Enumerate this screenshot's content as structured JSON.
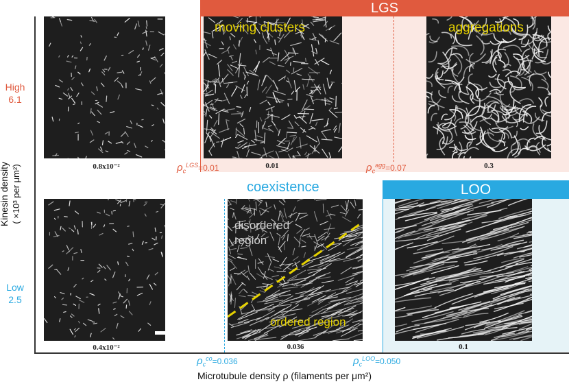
{
  "colors": {
    "lgs": "#e05a3e",
    "lgs_bg": "#fbe8e3",
    "loo": "#29a9e1",
    "loo_bg": "#e6f3f7",
    "high": "#e05a3e",
    "low": "#29a9e1",
    "yellow": "#e6d200",
    "panel": "#1e1e1e"
  },
  "banners": {
    "lgs": "LGS",
    "loo": "LOO",
    "coexistence": "coexistence"
  },
  "axes": {
    "ylabel": "Kinesin density",
    "yunit": "( ×10³ per μm²)",
    "xlabel": "Microtubule density ρ (filaments per μm²)"
  },
  "levels": {
    "high_label": "High",
    "high_value": "6.1",
    "low_label": "Low",
    "low_value": "2.5"
  },
  "panels": {
    "high_1": "0.8x10⁻²",
    "high_2": "0.01",
    "high_3": "0.3",
    "low_1": "0.4x10⁻²",
    "low_2": "0.036",
    "low_3": "0.1"
  },
  "annotations": {
    "moving_clusters": "moving clusters",
    "aggregations": "aggregations",
    "disordered_line1": "disordered",
    "disordered_line2": "region",
    "ordered_region": "ordered region"
  },
  "thresholds": {
    "lgs_symbol": "ρ",
    "lgs_sub": "c",
    "lgs_sup": "LGS",
    "lgs_value": "=0.01",
    "agg_symbol": "ρ",
    "agg_sub": "c",
    "agg_sup": "agg",
    "agg_value": "=0.07",
    "co_symbol": "ρ",
    "co_sub": "c",
    "co_sup": "co",
    "co_value": "=0.036",
    "loo_symbol": "ρ",
    "loo_sub": "c",
    "loo_sup": "LOO",
    "loo_value": "=0.050"
  }
}
